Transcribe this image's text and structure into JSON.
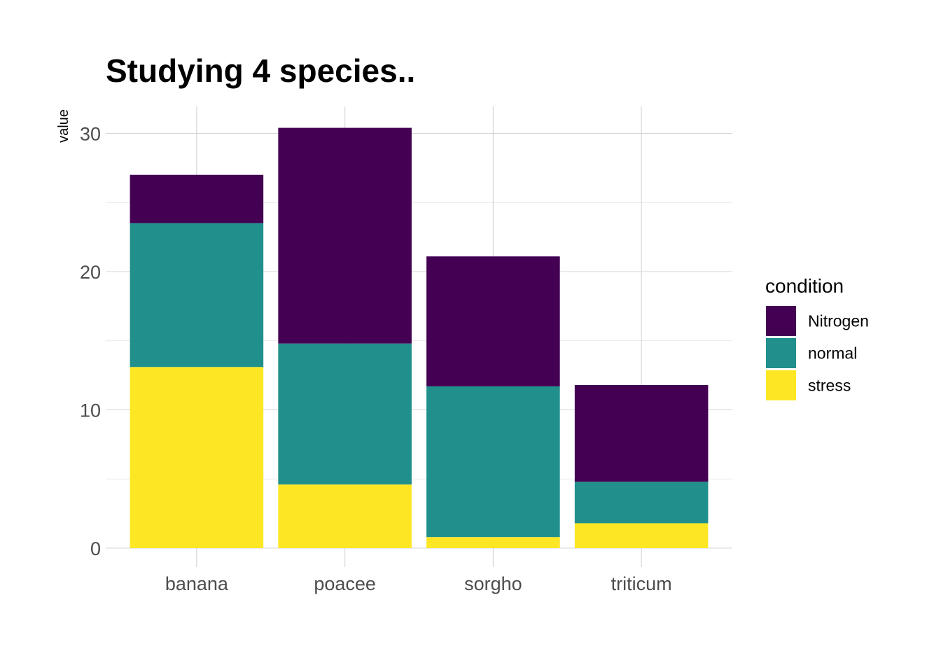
{
  "chart_data": {
    "type": "bar",
    "stacked": true,
    "title": "Studying 4 species..",
    "xlabel": "",
    "ylabel": "value",
    "categories": [
      "banana",
      "poacee",
      "sorgho",
      "triticum"
    ],
    "series": [
      {
        "name": "stress",
        "color": "#FDE725",
        "values": [
          13.1,
          4.6,
          0.8,
          1.8
        ]
      },
      {
        "name": "normal",
        "color": "#21908C",
        "values": [
          10.4,
          10.2,
          10.9,
          3.0
        ]
      },
      {
        "name": "Nitrogen",
        "color": "#440154",
        "values": [
          3.5,
          15.6,
          9.4,
          7.0
        ]
      }
    ],
    "legend": {
      "title": "condition",
      "placement": "right",
      "order": [
        "Nitrogen",
        "normal",
        "stress"
      ]
    },
    "ylim": [
      0,
      32
    ],
    "yticks": [
      0,
      10,
      20,
      30
    ],
    "grid": true
  }
}
